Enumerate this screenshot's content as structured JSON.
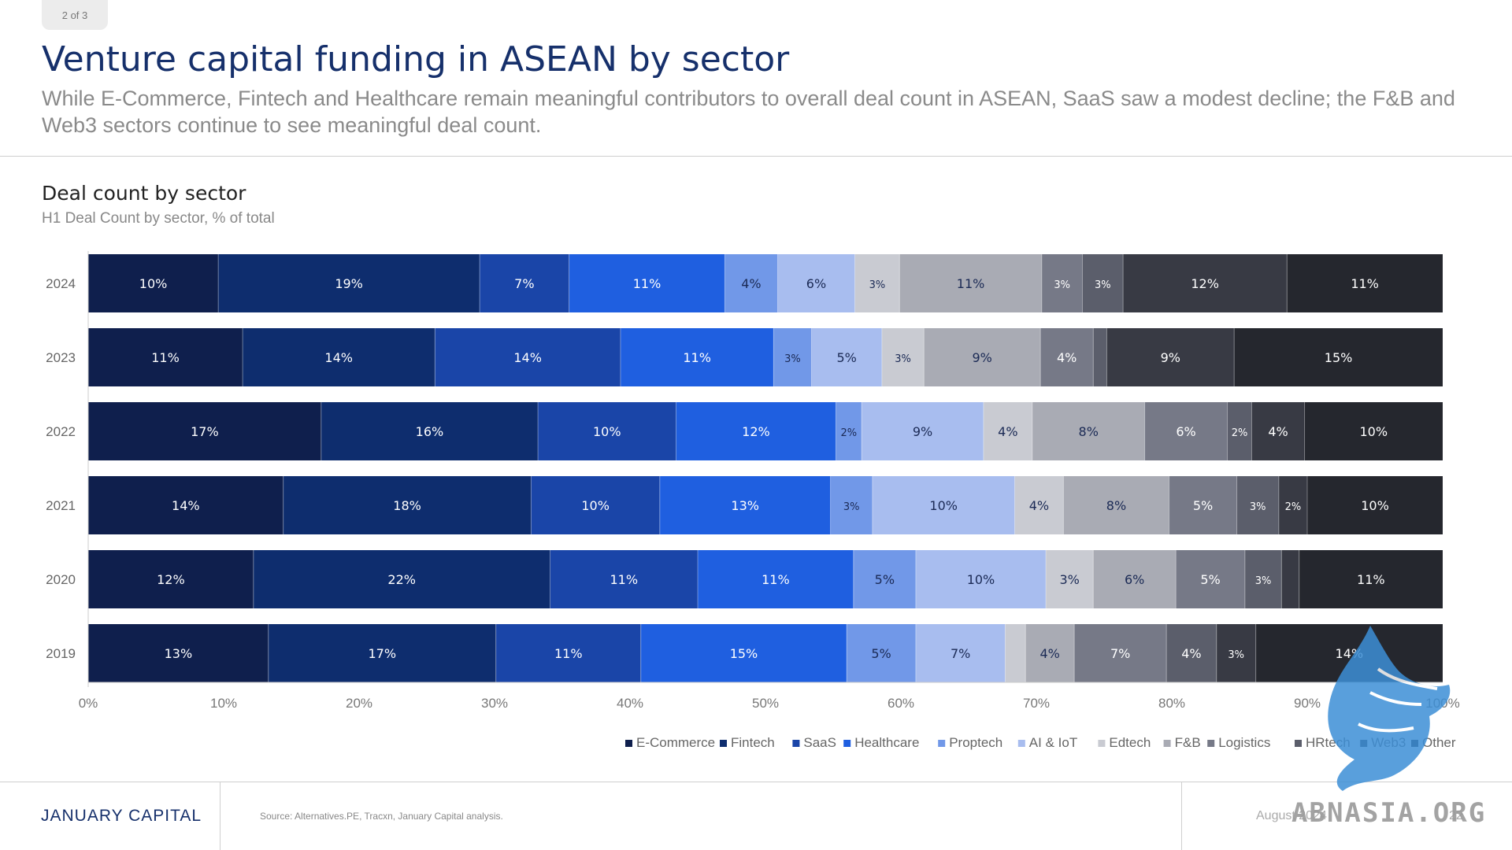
{
  "header": {
    "pager": "2 of 3",
    "title": "Venture capital funding in ASEAN by sector",
    "subtitle": "While E-Commerce, Fintech and Healthcare remain meaningful contributors to overall deal count in ASEAN, SaaS saw a modest decline; the F&B and Web3 sectors continue to see meaningful deal count."
  },
  "chart_title": "Deal count by sector",
  "chart_subtitle": "H1 Deal Count by sector, % of total",
  "chart_data": {
    "type": "bar",
    "orientation": "horizontal",
    "stacked": true,
    "categories": [
      "2024",
      "2023",
      "2022",
      "2021",
      "2020",
      "2019"
    ],
    "xlim": [
      0,
      100
    ],
    "xticks": [
      "0%",
      "10%",
      "20%",
      "30%",
      "40%",
      "50%",
      "60%",
      "70%",
      "80%",
      "90%",
      "100%"
    ],
    "legend_position": "bottom-right",
    "series": [
      {
        "name": "E-Commerce",
        "color": "#0f1f4d",
        "values": [
          9.6,
          11.4,
          17.2,
          14.4,
          12.2,
          13.3
        ],
        "labels": [
          "10%",
          "11%",
          "17%",
          "14%",
          "12%",
          "13%"
        ]
      },
      {
        "name": "Fintech",
        "color": "#0e2d6e",
        "values": [
          19.3,
          14.2,
          16.0,
          18.3,
          21.9,
          16.8
        ],
        "labels": [
          "19%",
          "14%",
          "16%",
          "18%",
          "22%",
          "17%"
        ]
      },
      {
        "name": "SaaS",
        "color": "#1a45a8",
        "values": [
          6.6,
          13.7,
          10.2,
          9.5,
          10.9,
          10.7
        ],
        "labels": [
          "7%",
          "14%",
          "10%",
          "10%",
          "11%",
          "11%"
        ]
      },
      {
        "name": "Healthcare",
        "color": "#1f5fe0",
        "values": [
          11.5,
          11.3,
          11.8,
          12.6,
          11.5,
          15.2
        ],
        "labels": [
          "11%",
          "11%",
          "12%",
          "13%",
          "11%",
          "15%"
        ]
      },
      {
        "name": "Proptech",
        "color": "#7198e8",
        "values": [
          3.9,
          2.8,
          1.9,
          3.1,
          4.6,
          5.1
        ],
        "labels": [
          "4%",
          "3%",
          "2%",
          "3%",
          "5%",
          "5%"
        ]
      },
      {
        "name": "AI & IoT",
        "color": "#a8bdef",
        "values": [
          5.7,
          5.2,
          9.0,
          10.5,
          9.6,
          6.6
        ],
        "labels": [
          "6%",
          "5%",
          "9%",
          "10%",
          "10%",
          "7%"
        ]
      },
      {
        "name": "Edtech",
        "color": "#c9cbd2",
        "values": [
          3.3,
          3.1,
          3.6,
          3.6,
          3.5,
          1.5
        ],
        "labels": [
          "3%",
          "3%",
          "4%",
          "4%",
          "3%",
          ""
        ]
      },
      {
        "name": "F&B",
        "color": "#a9abb4",
        "values": [
          10.5,
          8.6,
          8.3,
          7.8,
          6.1,
          3.6
        ],
        "labels": [
          "11%",
          "9%",
          "8%",
          "8%",
          "6%",
          "4%"
        ]
      },
      {
        "name": "Logistics",
        "color": "#767987",
        "values": [
          3.0,
          3.9,
          6.1,
          5.0,
          5.1,
          6.8
        ],
        "labels": [
          "3%",
          "4%",
          "6%",
          "5%",
          "5%",
          "7%"
        ]
      },
      {
        "name": "HRtech",
        "color": "#5b5e6b",
        "values": [
          3.0,
          1.0,
          1.8,
          3.1,
          2.7,
          3.7
        ],
        "labels": [
          "3%",
          "",
          "2%",
          "3%",
          "3%",
          "4%"
        ]
      },
      {
        "name": "Web3",
        "color": "#383a44",
        "values": [
          12.1,
          9.4,
          3.9,
          2.1,
          1.3,
          2.9
        ],
        "labels": [
          "12%",
          "9%",
          "4%",
          "2%",
          "",
          "3%"
        ]
      },
      {
        "name": "Other",
        "color": "#25272e",
        "values": [
          11.5,
          15.4,
          10.2,
          10.0,
          10.6,
          13.8
        ],
        "labels": [
          "11%",
          "15%",
          "10%",
          "10%",
          "11%",
          "14%"
        ]
      }
    ]
  },
  "footer": {
    "brand": "JANUARY CAPITAL",
    "source": "Source: Alternatives.PE, Tracxn, January Capital analysis.",
    "date": "August 2024",
    "page": "22"
  },
  "watermark": {
    "text": "ABNASIA.ORG",
    "icon": "griffin-icon",
    "color": "#3d8fd6"
  }
}
